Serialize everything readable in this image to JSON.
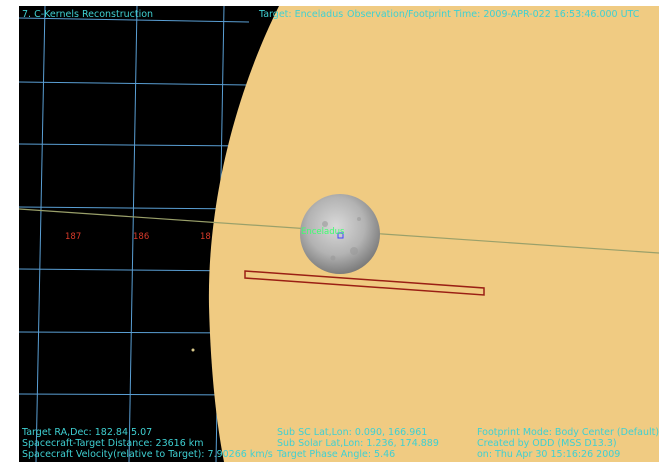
{
  "window": {
    "title": "7. C-Kernels Reconstruction",
    "header_target": "Target: Enceladus",
    "header_footprint": "Observation/Footprint Time: 2009-APR-022 16:53:46.000 UTC"
  },
  "scene": {
    "planet_name": "Saturn",
    "moon_label": "Enceladus",
    "longitude_labels": [
      "187",
      "186",
      "18"
    ]
  },
  "status": {
    "left": [
      "Target RA,Dec: 182.84    5.07",
      "Spacecraft-Target Distance:   23616 km",
      "Spacecraft Velocity(relative to Target): 7.90266 km/s"
    ],
    "middle": [
      "Sub SC Lat,Lon:  0.090,  166.961",
      "Sub Solar Lat,Lon:  1.236,  174.889",
      "Target Phase Angle:  5.46"
    ],
    "right": [
      "Footprint Mode: Body Center (Default)",
      "Created by ODD (MSS D13.3)",
      "on: Thu Apr 30 15:16:26 2009"
    ]
  },
  "colors": {
    "background": "#000000",
    "grid": "#5a9fd4",
    "planet": "#f0cb82",
    "hud_text": "#3fd0d2",
    "footprint": "#9a1f14"
  }
}
